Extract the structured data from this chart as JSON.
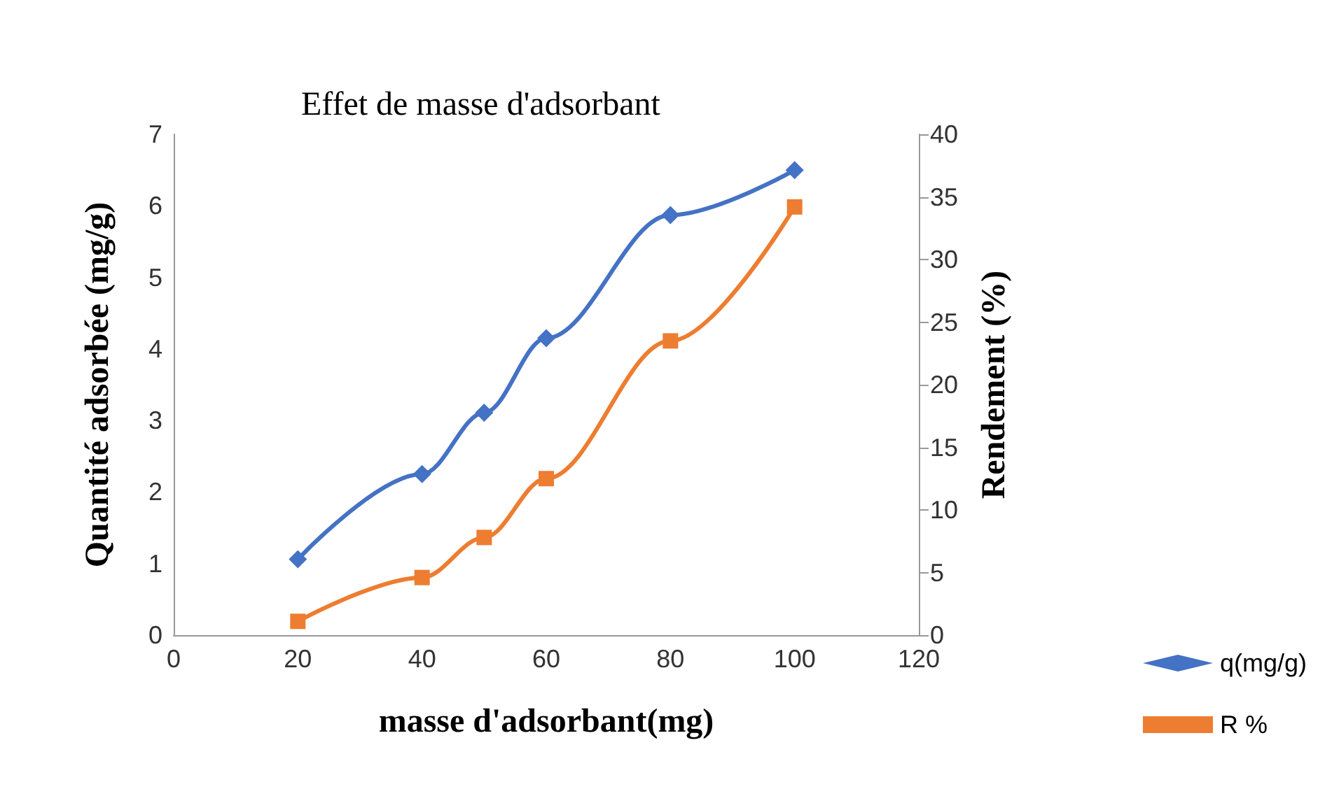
{
  "chart_data": {
    "type": "line",
    "title": "Effet de masse d'adsorbant",
    "xlabel": "masse d'adsorbant(mg)",
    "ylabel": "Quantité adsorbée (mg/g)",
    "y2label": "Rendement (%)",
    "x": [
      20,
      40,
      50,
      60,
      80,
      100
    ],
    "series": [
      {
        "name": "q(mg/g)",
        "color": "#4472c4",
        "marker": "diamond",
        "values": [
          1.06,
          2.25,
          3.11,
          4.15,
          5.87,
          6.5
        ]
      },
      {
        "name": "R %",
        "color": "#ed7d31",
        "marker": "square",
        "axis": "y2",
        "values": [
          1.1,
          4.6,
          7.8,
          12.5,
          23.5,
          34.2
        ]
      }
    ],
    "xlim": [
      0,
      120
    ],
    "xticks": [
      0,
      20,
      40,
      60,
      80,
      100,
      120
    ],
    "ylim": [
      0,
      7
    ],
    "yticks": [
      0,
      1,
      2,
      3,
      4,
      5,
      6,
      7
    ],
    "y2lim": [
      0,
      40
    ],
    "y2ticks": [
      0,
      5,
      10,
      15,
      20,
      25,
      30,
      35,
      40
    ],
    "grid": false,
    "legend": "bottom right",
    "line_style": "solid"
  }
}
